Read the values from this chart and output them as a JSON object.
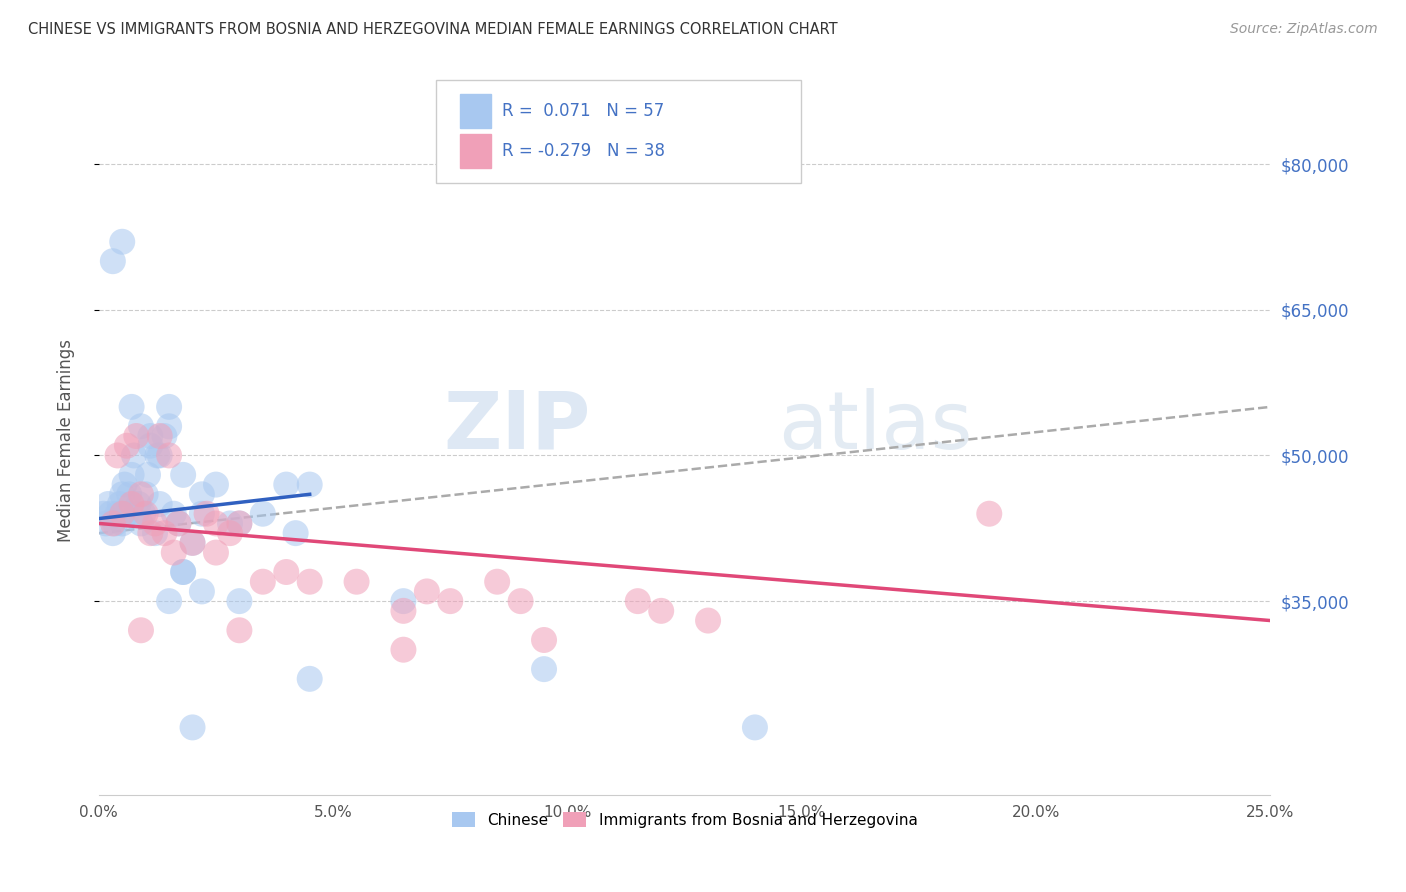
{
  "title": "CHINESE VS IMMIGRANTS FROM BOSNIA AND HERZEGOVINA MEDIAN FEMALE EARNINGS CORRELATION CHART",
  "source": "Source: ZipAtlas.com",
  "ylabel": "Median Female Earnings",
  "xlabel_ticks": [
    "0.0%",
    "5.0%",
    "10.0%",
    "15.0%",
    "20.0%",
    "25.0%"
  ],
  "xlabel_vals": [
    0.0,
    5.0,
    10.0,
    15.0,
    20.0,
    25.0
  ],
  "ylim": [
    15000,
    88000
  ],
  "xlim": [
    0.0,
    25.0
  ],
  "ytick_vals": [
    35000,
    50000,
    65000,
    80000
  ],
  "ytick_labels": [
    "$35,000",
    "$50,000",
    "$65,000",
    "$80,000"
  ],
  "r_chinese": 0.071,
  "n_chinese": 57,
  "r_bosnia": -0.279,
  "n_bosnia": 38,
  "color_chinese": "#A8C8F0",
  "color_bosnia": "#F0A0B8",
  "color_chinese_line": "#3060C0",
  "color_bosnia_line": "#E04878",
  "color_dashed_line": "#AAAAAA",
  "legend1_label": "Chinese",
  "legend2_label": "Immigrants from Bosnia and Herzegovina",
  "watermark_zip": "ZIP",
  "watermark_atlas": "atlas",
  "chinese_x": [
    0.1,
    0.15,
    0.2,
    0.25,
    0.3,
    0.35,
    0.4,
    0.45,
    0.5,
    0.5,
    0.55,
    0.6,
    0.65,
    0.7,
    0.75,
    0.8,
    0.85,
    0.9,
    0.95,
    1.0,
    1.05,
    1.1,
    1.2,
    1.25,
    1.3,
    1.4,
    1.5,
    1.6,
    1.7,
    1.8,
    2.0,
    2.2,
    2.5,
    2.8,
    3.5,
    4.0,
    4.2,
    0.3,
    0.5,
    0.7,
    0.9,
    1.1,
    1.3,
    1.5,
    1.8,
    2.2,
    3.0,
    4.5,
    1.5,
    1.8,
    2.2,
    3.0,
    4.5,
    2.0,
    6.5,
    9.5,
    14.0
  ],
  "chinese_y": [
    44000,
    43000,
    45000,
    44000,
    42000,
    43000,
    44000,
    45000,
    43000,
    46000,
    47000,
    44000,
    46000,
    48000,
    50000,
    44000,
    45000,
    43000,
    44000,
    46000,
    48000,
    52000,
    42000,
    50000,
    45000,
    52000,
    55000,
    44000,
    43000,
    38000,
    41000,
    44000,
    47000,
    43000,
    44000,
    47000,
    42000,
    70000,
    72000,
    55000,
    53000,
    51000,
    50000,
    53000,
    48000,
    46000,
    43000,
    47000,
    35000,
    38000,
    36000,
    35000,
    27000,
    22000,
    35000,
    28000,
    22000
  ],
  "bosnia_x": [
    0.3,
    0.5,
    0.7,
    0.9,
    1.1,
    1.3,
    1.5,
    1.7,
    2.0,
    2.3,
    2.5,
    2.8,
    3.0,
    3.5,
    4.0,
    4.5,
    5.5,
    6.5,
    7.0,
    7.5,
    8.5,
    9.0,
    11.5,
    12.0,
    13.0,
    0.4,
    0.6,
    0.8,
    1.0,
    1.2,
    1.4,
    1.6,
    2.5,
    3.0,
    6.5,
    9.5,
    19.0,
    0.9
  ],
  "bosnia_y": [
    43000,
    44000,
    45000,
    46000,
    42000,
    52000,
    50000,
    43000,
    41000,
    44000,
    43000,
    42000,
    43000,
    37000,
    38000,
    37000,
    37000,
    34000,
    36000,
    35000,
    37000,
    35000,
    35000,
    34000,
    33000,
    50000,
    51000,
    52000,
    44000,
    43000,
    42000,
    40000,
    40000,
    32000,
    30000,
    31000,
    44000,
    32000
  ],
  "chinese_line_x": [
    0.0,
    4.5
  ],
  "chinese_line_y": [
    43500,
    46000
  ],
  "bosnia_line_x": [
    0.0,
    25.0
  ],
  "bosnia_line_y": [
    43000,
    33000
  ],
  "dashed_line_x": [
    0.0,
    25.0
  ],
  "dashed_line_y": [
    42000,
    55000
  ]
}
